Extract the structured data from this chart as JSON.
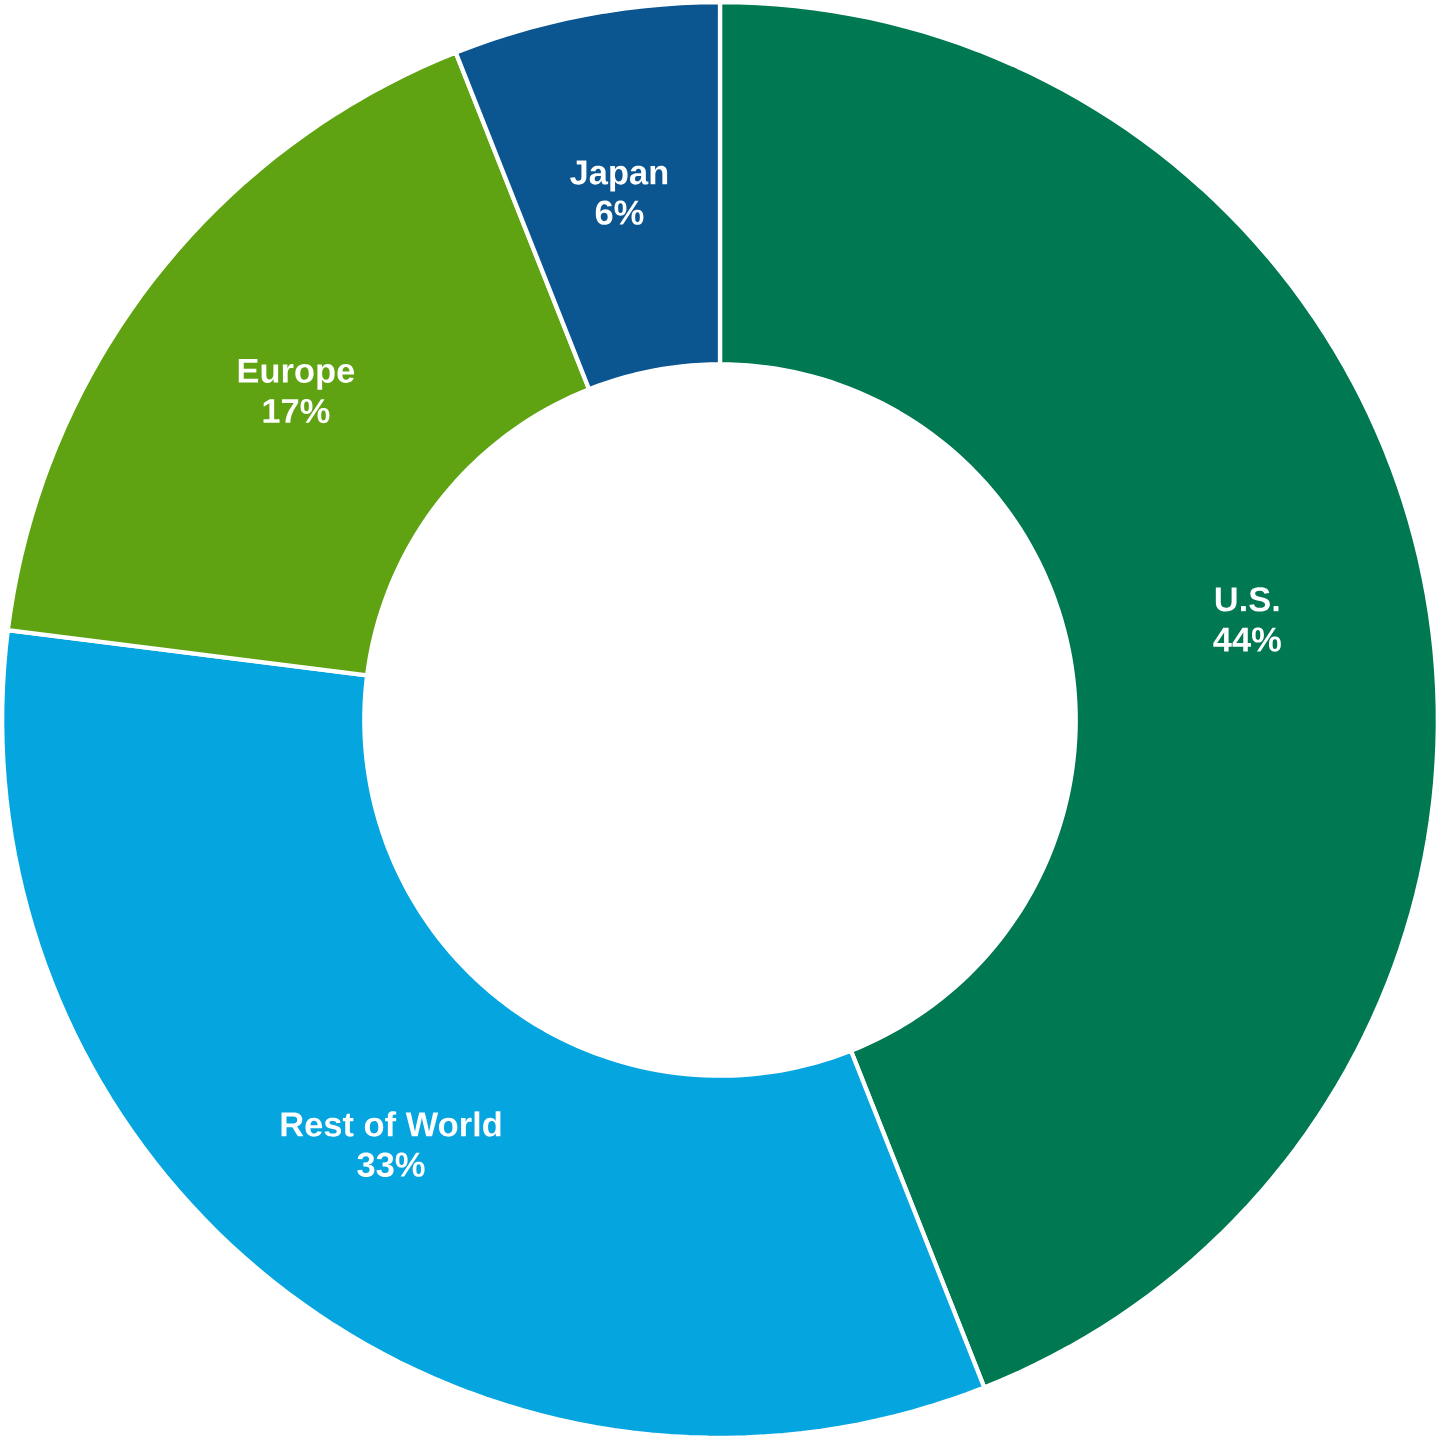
{
  "chart_data": {
    "type": "donut",
    "categories": [
      "U.S.",
      "Rest of World",
      "Europe",
      "Japan"
    ],
    "values": [
      44,
      33,
      17,
      6
    ],
    "value_labels": [
      "44%",
      "33%",
      "17%",
      "6%"
    ],
    "colors": [
      "#007852",
      "#05a6e0",
      "#5fa312",
      "#0b5591"
    ]
  }
}
